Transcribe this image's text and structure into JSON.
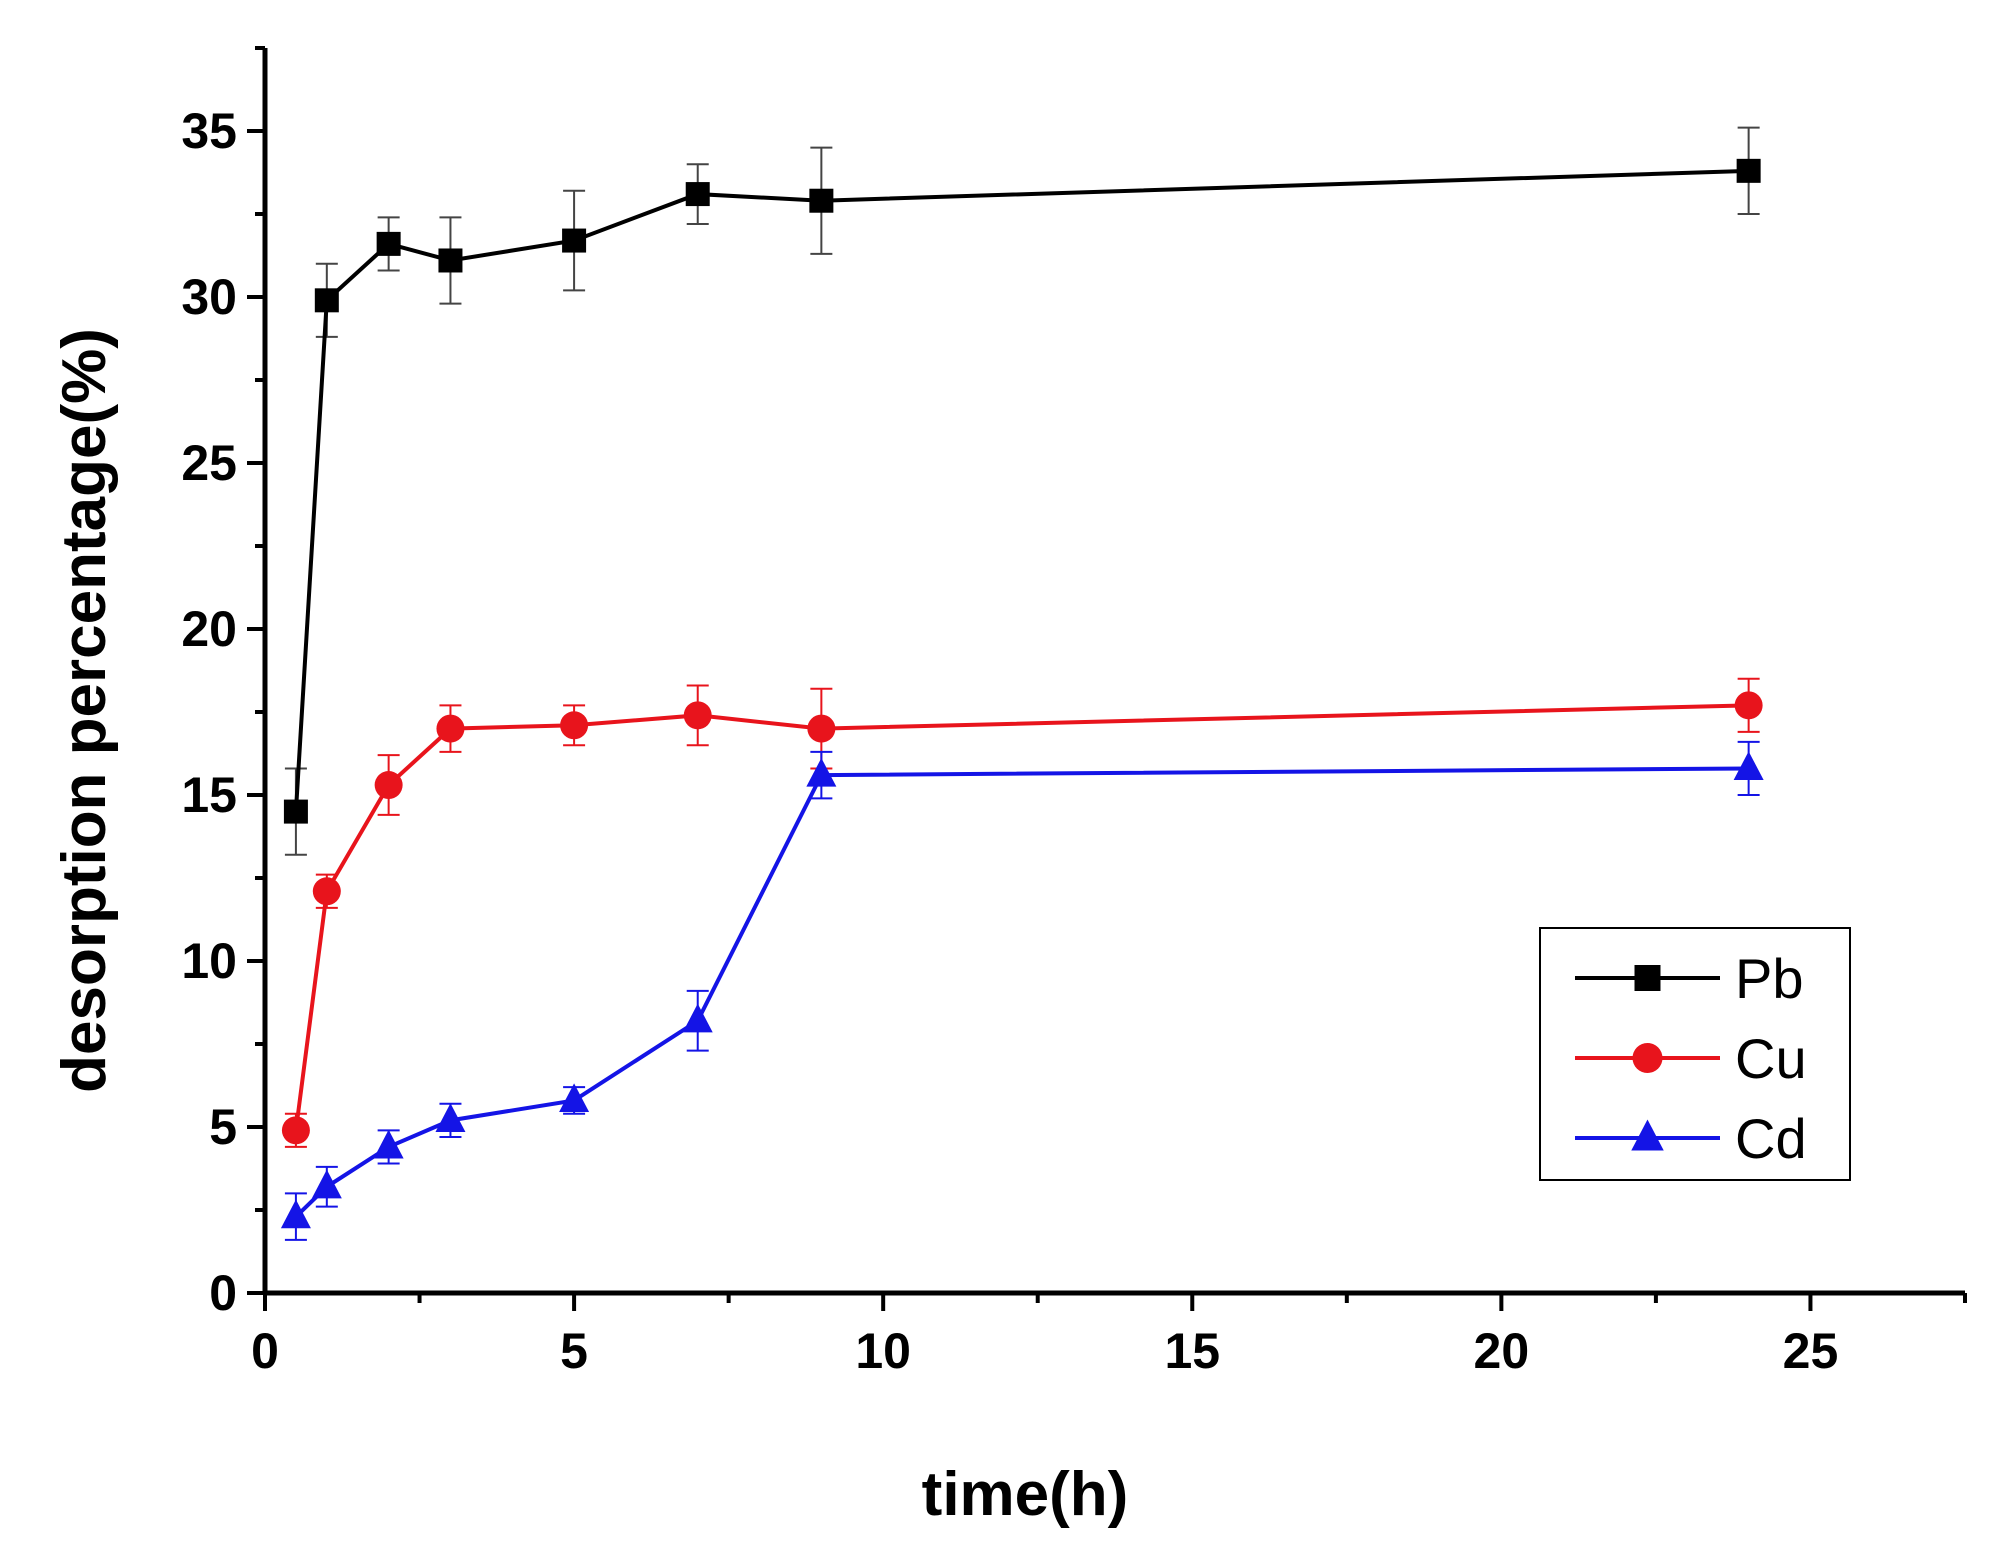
{
  "chart_data": {
    "type": "line",
    "title": "",
    "xlabel": "time(h)",
    "ylabel": "desorption percentage(%)",
    "xlim": [
      0,
      27.5
    ],
    "ylim": [
      0,
      37.5
    ],
    "xticks": [
      0,
      5,
      10,
      15,
      20,
      25
    ],
    "yticks": [
      0,
      5,
      10,
      15,
      20,
      25,
      30,
      35
    ],
    "grid": false,
    "legend": "right",
    "x": [
      0.5,
      1,
      2,
      3,
      5,
      7,
      9,
      24
    ],
    "series": [
      {
        "name": "Pb",
        "marker": "square",
        "color": "#000000",
        "values": [
          14.5,
          29.9,
          31.6,
          31.1,
          31.7,
          33.1,
          32.9,
          33.8
        ],
        "errors": [
          1.3,
          1.1,
          0.8,
          1.3,
          1.5,
          0.9,
          1.6,
          1.3
        ]
      },
      {
        "name": "Cu",
        "marker": "circle",
        "color": "#e8141c",
        "values": [
          4.9,
          12.1,
          15.3,
          17.0,
          17.1,
          17.4,
          17.0,
          17.7
        ],
        "errors": [
          0.5,
          0.5,
          0.9,
          0.7,
          0.6,
          0.9,
          1.2,
          0.8
        ]
      },
      {
        "name": "Cd",
        "marker": "triangle",
        "color": "#1414e6",
        "values": [
          2.3,
          3.2,
          4.4,
          5.2,
          5.8,
          8.2,
          15.6,
          15.8
        ],
        "errors": [
          0.7,
          0.6,
          0.5,
          0.5,
          0.4,
          0.9,
          0.7,
          0.8
        ]
      }
    ]
  }
}
